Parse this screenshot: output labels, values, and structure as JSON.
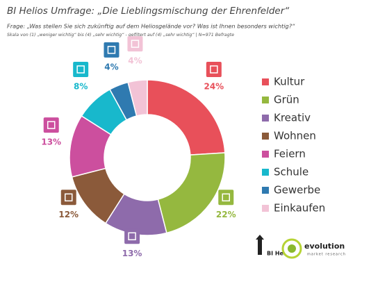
{
  "chart_data": {
    "type": "donut",
    "title": "BI Helios Umfrage: „Die Lieblingsmischung der Ehrenfelder“",
    "subtitle": "Frage: „Was stellen Sie sich zukünftig auf dem Heliosgelände vor? Was ist Ihnen besonders wichtig?“",
    "note": "Skala von (1) „weniger wichtig“ bis (4) „sehr wichtig“ - gefiltert auf (4) „sehr wichtig“ | N=971 Befragte",
    "categories": [
      "Kultur",
      "Grün",
      "Kreativ",
      "Wohnen",
      "Feiern",
      "Schule",
      "Gewerbe",
      "Einkaufen"
    ],
    "values": [
      24,
      22,
      13,
      12,
      13,
      8,
      4,
      4
    ],
    "value_labels": [
      "24%",
      "22%",
      "13%",
      "12%",
      "13%",
      "8%",
      "4%",
      "4%"
    ],
    "colors": [
      "#e8505a",
      "#95b83f",
      "#8e6bab",
      "#8b5a3a",
      "#cc4f9e",
      "#18b8cc",
      "#2f7ab0",
      "#f2c3d6"
    ],
    "legend": "right",
    "logos": [
      "BI Helios",
      "evolution",
      "market research"
    ]
  }
}
